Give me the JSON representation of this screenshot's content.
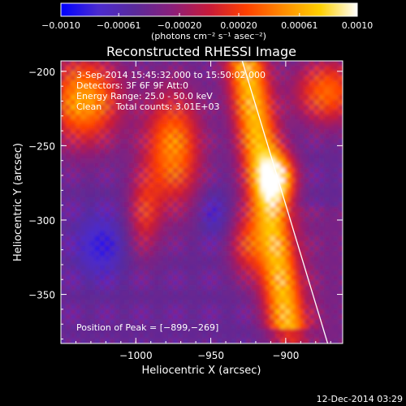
{
  "chart_data": {
    "type": "heatmap",
    "title": "Reconstructed RHESSI Image",
    "xlabel": "Heliocentric X (arcsec)",
    "ylabel": "Heliocentric Y (arcsec)",
    "xlim": [
      -1050,
      -862
    ],
    "ylim": [
      -383,
      -193
    ],
    "x_ticks": [
      {
        "value": -1000,
        "label": "−1000"
      },
      {
        "value": -950,
        "label": "−950"
      },
      {
        "value": -900,
        "label": "−900"
      }
    ],
    "y_ticks": [
      {
        "value": -200,
        "label": "−200"
      },
      {
        "value": -250,
        "label": "−250"
      },
      {
        "value": -300,
        "label": "−300"
      },
      {
        "value": -350,
        "label": "−350"
      }
    ],
    "colorbar": {
      "range": [
        -0.001,
        0.001
      ],
      "ticks": [
        {
          "value": -0.001,
          "label": "−0.0010"
        },
        {
          "value": -0.00061,
          "label": "−0.00061"
        },
        {
          "value": -0.0002,
          "label": "−0.00020"
        },
        {
          "value": 0.0002,
          "label": "0.00020"
        },
        {
          "value": 0.00061,
          "label": "0.00061"
        },
        {
          "value": 0.001,
          "label": "0.0010"
        }
      ],
      "unit_label": "(photons cm⁻² s⁻¹ asec⁻²)"
    },
    "info_lines": [
      "3-Sep-2014 15:45:32.000 to 15:50:02.000",
      "Detectors: 3F 6F 9F Att:0",
      "Energy Range: 25.0 - 50.0 keV",
      "Clean     Total counts: 3.01E+03"
    ],
    "peak_text": "Position of Peak = [−899,−269]",
    "peak": {
      "x": -899,
      "y": -269
    },
    "limb_line": {
      "x": [
        -929,
        -872
      ],
      "y": [
        -193,
        -383
      ]
    },
    "footer_date": "12-Dec-2014 03:29",
    "colors": {
      "colormap": [
        "#0000ff",
        "#4b2bd0",
        "#5a2a9a",
        "#8a1f7a",
        "#c71a3a",
        "#ff4000",
        "#ff8c00",
        "#ffd000",
        "#ffffff"
      ],
      "limb": "#ffffff",
      "frame": "#ffffff",
      "text": "#ffffff",
      "background": "#000000"
    },
    "grid": false,
    "legend": "none"
  }
}
